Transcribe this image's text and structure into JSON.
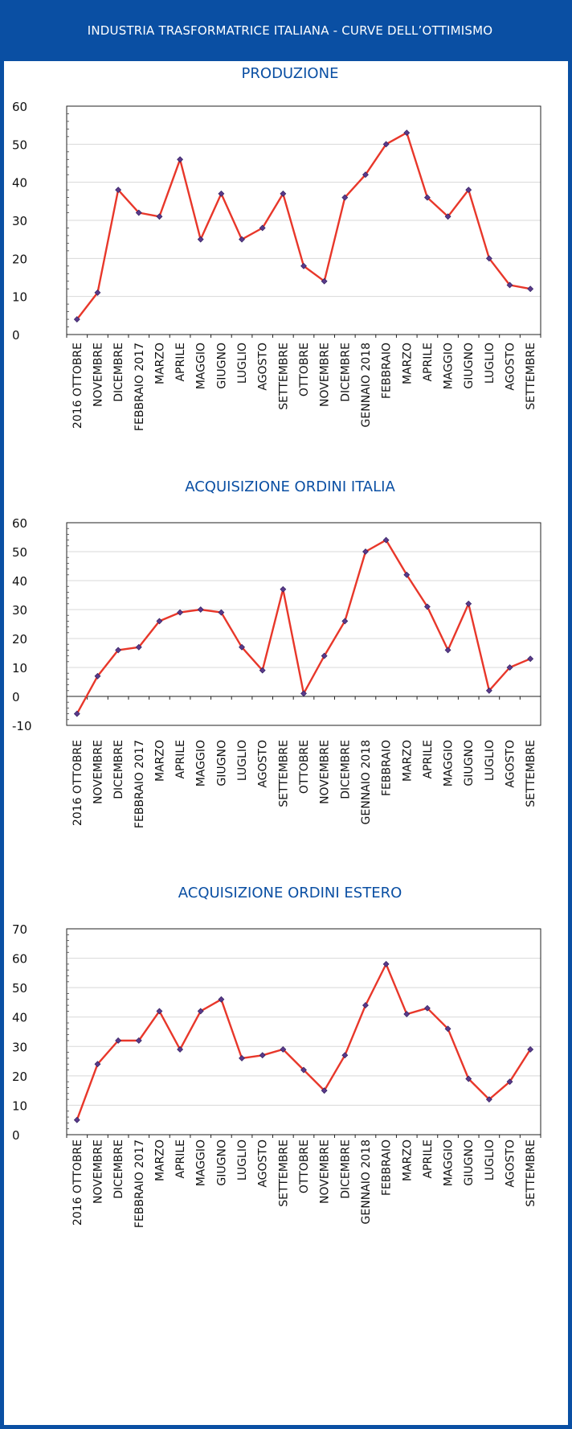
{
  "header": {
    "title": "INDUSTRIA TRASFORMATRICE ITALIANA - CURVE DELL’OTTIMISMO"
  },
  "colors": {
    "brand": "#0a4fa3",
    "line": "#e8372a",
    "marker": "#5a3a8a"
  },
  "chart_data": [
    {
      "type": "line",
      "title": "PRODUZIONE",
      "categories": [
        "2016 OTTOBRE",
        "NOVEMBRE",
        "DICEMBRE",
        "FEBBRAIO 2017",
        "MARZO",
        "APRILE",
        "MAGGIO",
        "GIUGNO",
        "LUGLIO",
        "AGOSTO",
        "SETTEMBRE",
        "OTTOBRE",
        "NOVEMBRE",
        "DICEMBRE",
        "GENNAIO 2018",
        "FEBBRAIO",
        "MARZO",
        "APRILE",
        "MAGGIO",
        "GIUGNO",
        "LUGLIO",
        "AGOSTO",
        "SETTEMBRE"
      ],
      "values": [
        4,
        11,
        38,
        32,
        31,
        46,
        25,
        37,
        25,
        28,
        37,
        18,
        14,
        36,
        42,
        50,
        53,
        36,
        31,
        38,
        20,
        13,
        12
      ],
      "ylim": [
        0,
        60
      ],
      "yticks": [
        0,
        10,
        20,
        30,
        40,
        50,
        60
      ],
      "grid": true
    },
    {
      "type": "line",
      "title": "ACQUISIZIONE ORDINI ITALIA",
      "categories": [
        "2016 OTTOBRE",
        "NOVEMBRE",
        "DICEMBRE",
        "FEBBRAIO 2017",
        "MARZO",
        "APRILE",
        "MAGGIO",
        "GIUGNO",
        "LUGLIO",
        "AGOSTO",
        "SETTEMBRE",
        "OTTOBRE",
        "NOVEMBRE",
        "DICEMBRE",
        "GENNAIO 2018",
        "FEBBRAIO",
        "MARZO",
        "APRILE",
        "MAGGIO",
        "GIUGNO",
        "LUGLIO",
        "AGOSTO",
        "SETTEMBRE"
      ],
      "values": [
        -6,
        7,
        16,
        17,
        26,
        29,
        30,
        29,
        17,
        9,
        37,
        1,
        14,
        26,
        50,
        54,
        42,
        31,
        16,
        32,
        2,
        10,
        13
      ],
      "ylim": [
        -10,
        60
      ],
      "yticks": [
        -10,
        0,
        10,
        20,
        30,
        40,
        50,
        60
      ],
      "grid": true
    },
    {
      "type": "line",
      "title": "ACQUISIZIONE ORDINI ESTERO",
      "categories": [
        "2016 OTTOBRE",
        "NOVEMBRE",
        "DICEMBRE",
        "FEBBRAIO 2017",
        "MARZO",
        "APRILE",
        "MAGGIO",
        "GIUGNO",
        "LUGLIO",
        "AGOSTO",
        "SETTEMBRE",
        "OTTOBRE",
        "NOVEMBRE",
        "DICEMBRE",
        "GENNAIO 2018",
        "FEBBRAIO",
        "MARZO",
        "APRILE",
        "MAGGIO",
        "GIUGNO",
        "LUGLIO",
        "AGOSTO",
        "SETTEMBRE"
      ],
      "values": [
        5,
        24,
        32,
        32,
        42,
        29,
        42,
        46,
        26,
        27,
        29,
        22,
        15,
        27,
        44,
        58,
        41,
        43,
        36,
        19,
        12,
        18,
        29
      ],
      "ylim": [
        0,
        70
      ],
      "yticks": [
        0,
        10,
        20,
        30,
        40,
        50,
        60,
        70
      ],
      "grid": true
    }
  ]
}
